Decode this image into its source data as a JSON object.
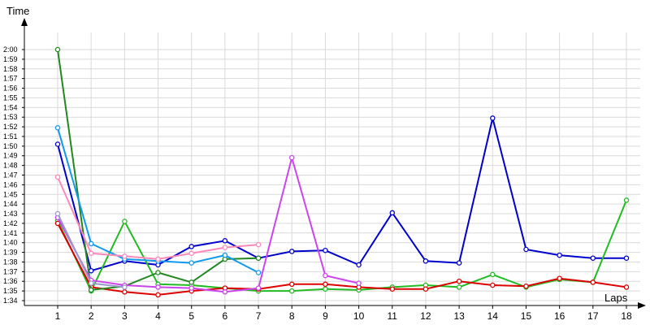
{
  "chart_data": {
    "type": "line",
    "xlabel": "Laps",
    "ylabel": "Time",
    "x_ticks": [
      "1",
      "2",
      "3",
      "4",
      "5",
      "6",
      "7",
      "8",
      "9",
      "10",
      "11",
      "12",
      "13",
      "14",
      "15",
      "16",
      "17",
      "18"
    ],
    "y_ticks": [
      "1:34",
      "1:35",
      "1:36",
      "1:37",
      "1:38",
      "1:39",
      "1:40",
      "1:41",
      "1:42",
      "1:43",
      "1:44",
      "1:45",
      "1:46",
      "1:47",
      "1:48",
      "1:49",
      "1:50",
      "1:51",
      "1:52",
      "1:53",
      "1:54",
      "1:55",
      "1:56",
      "1:57",
      "1:58",
      "1:59",
      "2:00"
    ],
    "xlim": [
      0,
      18.6
    ],
    "ylim": [
      94,
      121
    ],
    "grid": true,
    "series": [
      {
        "color": "#0000cc",
        "x": [
          1,
          2,
          3,
          4,
          5,
          6,
          7,
          8,
          9,
          10,
          11,
          12,
          13,
          14,
          15,
          16,
          17,
          18
        ],
        "y": [
          110.2,
          97.1,
          98.1,
          97.7,
          99.6,
          100.2,
          98.4,
          99.1,
          99.2,
          97.7,
          103.1,
          98.1,
          97.9,
          112.9,
          99.3,
          98.7,
          98.4,
          98.4
        ]
      },
      {
        "color": "#22bb22",
        "x": [
          1,
          2,
          3,
          4,
          5,
          6,
          7,
          8,
          9,
          10,
          11,
          12,
          13,
          14,
          15,
          16,
          17,
          18
        ],
        "y": [
          102.3,
          95.0,
          102.2,
          95.7,
          95.6,
          95.3,
          95.0,
          95.0,
          95.2,
          95.1,
          95.4,
          95.6,
          95.4,
          96.7,
          95.4,
          96.2,
          95.9,
          104.4
        ]
      },
      {
        "color": "#dd0000",
        "x": [
          1,
          2,
          3,
          4,
          5,
          6,
          7,
          8,
          9,
          10,
          11,
          12,
          13,
          14,
          15,
          16,
          17,
          18
        ],
        "y": [
          102.0,
          95.4,
          94.9,
          94.6,
          95.0,
          95.3,
          95.2,
          95.7,
          95.7,
          95.4,
          95.2,
          95.2,
          96.0,
          95.6,
          95.5,
          96.3,
          95.9,
          95.4
        ]
      },
      {
        "color": "#228822",
        "x": [
          1,
          2,
          3,
          4,
          5,
          6,
          7
        ],
        "y": [
          120.0,
          95.1,
          95.5,
          96.9,
          95.9,
          98.3,
          98.4
        ]
      },
      {
        "color": "#1199ee",
        "x": [
          1,
          2,
          3,
          4,
          5,
          6,
          7
        ],
        "y": [
          111.9,
          99.9,
          98.3,
          98.1,
          97.9,
          98.7,
          96.9
        ]
      },
      {
        "color": "#ff88bb",
        "x": [
          1,
          2,
          3,
          4,
          5,
          6,
          7
        ],
        "y": [
          106.8,
          98.9,
          98.6,
          98.3,
          98.9,
          99.5,
          99.8
        ]
      },
      {
        "color": "#cc44ee",
        "x": [
          1,
          2,
          3,
          4,
          5,
          6,
          7,
          8,
          9,
          10
        ],
        "y": [
          102.6,
          96.1,
          95.6,
          95.4,
          95.3,
          94.9,
          95.3,
          108.8,
          96.6,
          95.8
        ]
      },
      {
        "color": "#9999cc",
        "x": [
          1,
          2,
          3
        ],
        "y": [
          103.0,
          95.8,
          95.4
        ]
      }
    ]
  }
}
